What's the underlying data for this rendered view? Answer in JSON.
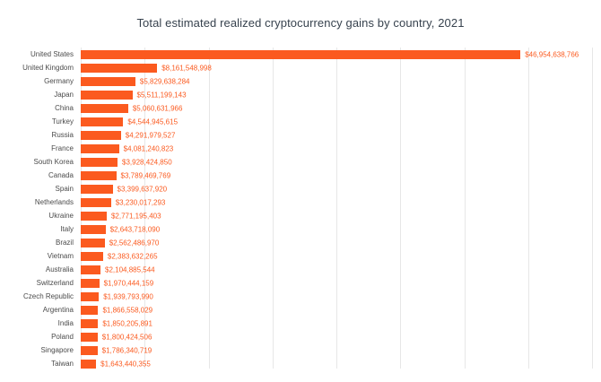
{
  "title": "Total estimated realized cryptocurrency gains by country, 2021",
  "colors": {
    "bar": "#fb5a1f",
    "value_label": "#fb5a1f",
    "grid": "#e7e7e7",
    "title": "#37424e",
    "country_label": "#4b4b4b",
    "background": "#ffffff"
  },
  "chart_data": {
    "type": "bar",
    "orientation": "horizontal",
    "title": "Total estimated realized cryptocurrency gains by country, 2021",
    "xlabel": "",
    "ylabel": "",
    "grid": true,
    "legend": false,
    "xlim": [
      0,
      50000000000
    ],
    "categories": [
      "United States",
      "United Kingdom",
      "Germany",
      "Japan",
      "China",
      "Turkey",
      "Russia",
      "France",
      "South Korea",
      "Canada",
      "Spain",
      "Netherlands",
      "Ukraine",
      "Italy",
      "Brazil",
      "Vietnam",
      "Australia",
      "Switzerland",
      "Czech Republic",
      "Argentina",
      "India",
      "Poland",
      "Singapore",
      "Taiwan"
    ],
    "values": [
      46954638766,
      8161548998,
      5829638284,
      5511199143,
      5060631966,
      4544945615,
      4291979527,
      4081240823,
      3928424850,
      3789469769,
      3399637920,
      3230017293,
      2771195403,
      2643718090,
      2562486970,
      2383632265,
      2104885544,
      1970444159,
      1939793990,
      1866558029,
      1850205891,
      1800424506,
      1786340719,
      1643440355
    ],
    "value_labels": [
      "$46,954,638,766",
      "$8,161,548,998",
      "$5,829,638,284",
      "$5,511,199,143",
      "$5,060,631,966",
      "$4,544,945,615",
      "$4,291,979,527",
      "$4,081,240,823",
      "$3,928,424,850",
      "$3,789,469,769",
      "$3,399,637,920",
      "$3,230,017,293",
      "$2,771,195,403",
      "$2,643,718,090",
      "$2,562,486,970",
      "$2,383,632,265",
      "$2,104,885,544",
      "$1,970,444,159",
      "$1,939,793,990",
      "$1,866,558,029",
      "$1,850,205,891",
      "$1,800,424,506",
      "$1,786,340,719",
      "$1,643,440,355"
    ]
  }
}
